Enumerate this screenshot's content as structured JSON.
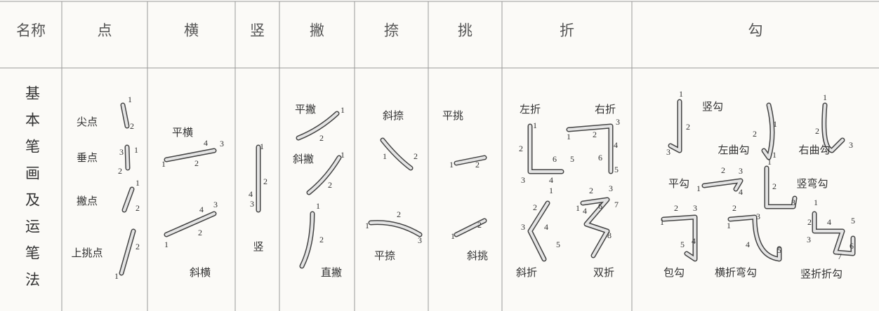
{
  "table": {
    "header": [
      "名称",
      "点",
      "横",
      "竖",
      "撇",
      "捺",
      "挑",
      "折",
      "勾"
    ],
    "row_label": "基本笔画及运笔法",
    "cells": [
      [
        {
          "label": "尖点",
          "numbers": [
            1,
            2
          ]
        },
        {
          "label": "垂点",
          "numbers": [
            3,
            1,
            2
          ]
        },
        {
          "label": "撇点",
          "numbers": [
            1,
            2
          ]
        },
        {
          "label": "上挑点",
          "numbers": [
            2,
            1
          ]
        }
      ],
      [
        {
          "label": "平横",
          "numbers": [
            4,
            3,
            1,
            2
          ]
        },
        {
          "label": "斜横",
          "numbers": [
            4,
            3,
            2,
            1
          ]
        }
      ],
      [
        {
          "label": "竖",
          "numbers": [
            1,
            2,
            4,
            3
          ]
        }
      ],
      [
        {
          "label": "平撇",
          "numbers": [
            1,
            2
          ]
        },
        {
          "label": "斜撇",
          "numbers": [
            1,
            2
          ]
        },
        {
          "label": "直撇",
          "numbers": [
            1,
            2
          ]
        }
      ],
      [
        {
          "label": "斜捺",
          "numbers": [
            1,
            2
          ]
        },
        {
          "label": "平捺",
          "numbers": [
            2,
            1,
            3
          ]
        }
      ],
      [
        {
          "label": "平挑",
          "numbers": [
            1,
            2
          ]
        },
        {
          "label": "斜挑",
          "numbers": [
            1,
            2
          ]
        }
      ],
      [
        {
          "label": "左折",
          "numbers": [
            1,
            2,
            6,
            5,
            3,
            4
          ]
        },
        {
          "label": "右折",
          "numbers": [
            1,
            2,
            3,
            4,
            6,
            5
          ]
        },
        {
          "label": "斜折",
          "numbers": [
            1,
            2,
            3,
            4,
            5
          ]
        },
        {
          "label": "双折",
          "numbers": [
            2,
            3,
            1,
            4,
            6,
            7,
            8
          ]
        }
      ],
      [
        {
          "label": "竖勾",
          "numbers": [
            1,
            2,
            3
          ]
        },
        {
          "label": "左曲勾",
          "numbers": [
            2,
            1,
            1
          ]
        },
        {
          "label": "右曲勾",
          "numbers": [
            1,
            2,
            3
          ]
        },
        {
          "label": "平勾",
          "numbers": [
            2,
            3,
            1,
            4
          ]
        },
        {
          "label": "竖弯勾",
          "numbers": [
            1,
            2,
            3
          ]
        },
        {
          "label": "包勾",
          "numbers": [
            1,
            2,
            3,
            5,
            4
          ]
        },
        {
          "label": "横折弯勾",
          "numbers": [
            1,
            2,
            3,
            4,
            5
          ]
        },
        {
          "label": "竖折折勾",
          "numbers": [
            1,
            2,
            4,
            5,
            3,
            6,
            7
          ]
        }
      ]
    ]
  }
}
